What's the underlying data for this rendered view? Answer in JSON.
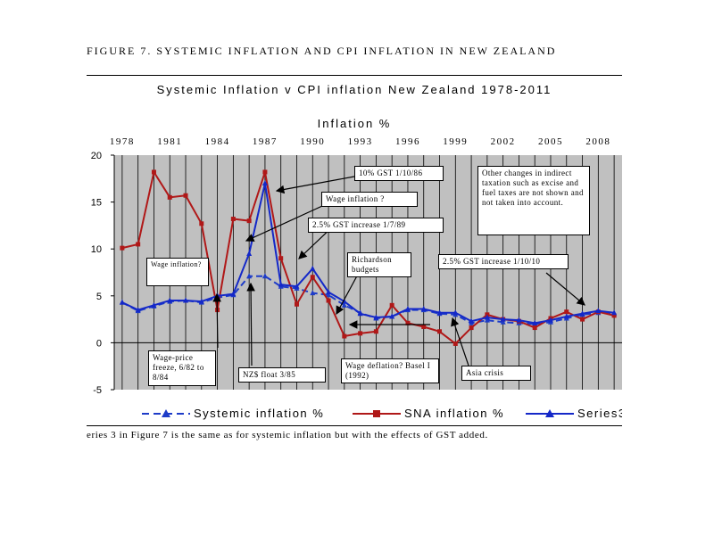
{
  "figure_title": "FIGURE 7. SYSTEMIC INFLATION AND CPI INFLATION IN NEW ZEALAND",
  "footnote": "eries 3 in Figure 7 is the same as for systemic inflation but with the effects of GST added.",
  "chart_data": {
    "type": "line",
    "title": "Systemic Inflation v CPI inflation New  Zealand 1978-2011",
    "xlabel": "Inflation %",
    "ylabel": "",
    "x_tick_position": "top",
    "x_tick_labels": [
      "1978",
      "1981",
      "1984",
      "1987",
      "1990",
      "1993",
      "1996",
      "1999",
      "2002",
      "2005",
      "2008"
    ],
    "y_tick_labels": [
      "20",
      "15",
      "10",
      "5",
      "0",
      "-5"
    ],
    "ylim": [
      -5,
      20
    ],
    "xlim": [
      1977.5,
      2009.5
    ],
    "grid": "vertical",
    "plot_background": "#c0c0c0",
    "legend_position": "bottom",
    "series": [
      {
        "name": "Systemic inflation %",
        "color": "#1e3cc8",
        "style": "dashed",
        "marker": "triangle",
        "x": [
          1978,
          1979,
          1980,
          1981,
          1982,
          1983,
          1984,
          1985,
          1986,
          1987,
          1988,
          1989,
          1990,
          1991,
          1992,
          1993,
          1994,
          1995,
          1996,
          1997,
          1998,
          1999,
          2000,
          2001,
          2002,
          2003,
          2004,
          2005,
          2006,
          2007,
          2008,
          2009
        ],
        "values": [
          4.3,
          3.4,
          3.9,
          4.4,
          4.5,
          4.3,
          4.8,
          5.1,
          7.1,
          7.1,
          6.0,
          5.8,
          5.3,
          5.1,
          4.0,
          3.2,
          2.6,
          2.8,
          3.5,
          3.5,
          3.1,
          3.0,
          2.1,
          2.4,
          2.2,
          2.1,
          2.0,
          2.2,
          2.6,
          3.0,
          3.2,
          3.1
        ]
      },
      {
        "name": "SNA inflation %",
        "color": "#b01818",
        "style": "solid",
        "marker": "square",
        "x": [
          1978,
          1979,
          1980,
          1981,
          1982,
          1983,
          1984,
          1985,
          1986,
          1987,
          1988,
          1989,
          1990,
          1991,
          1992,
          1993,
          1994,
          1995,
          1996,
          1997,
          1998,
          1999,
          2000,
          2001,
          2002,
          2003,
          2004,
          2005,
          2006,
          2007,
          2008,
          2009
        ],
        "values": [
          10.1,
          10.5,
          18.2,
          15.5,
          15.7,
          12.7,
          3.5,
          13.2,
          13.0,
          18.2,
          9.0,
          4.1,
          7.0,
          4.5,
          0.7,
          1.0,
          1.2,
          4.0,
          2.1,
          1.7,
          1.2,
          -0.1,
          1.6,
          3.0,
          2.5,
          2.3,
          1.6,
          2.6,
          3.3,
          2.5,
          3.3,
          2.9
        ]
      },
      {
        "name": "Series3",
        "color": "#1428c8",
        "style": "solid",
        "marker": "triangle",
        "x": [
          1978,
          1979,
          1980,
          1981,
          1982,
          1983,
          1984,
          1985,
          1986,
          1987,
          1988,
          1989,
          1990,
          1991,
          1992,
          1993,
          1994,
          1995,
          1996,
          1997,
          1998,
          1999,
          2000,
          2001,
          2002,
          2003,
          2004,
          2005,
          2006,
          2007,
          2008,
          2009
        ],
        "values": [
          4.3,
          3.5,
          4.0,
          4.5,
          4.5,
          4.4,
          5.0,
          5.2,
          9.5,
          17.0,
          6.2,
          6.0,
          7.9,
          5.4,
          4.4,
          3.1,
          2.7,
          2.8,
          3.6,
          3.6,
          3.2,
          3.2,
          2.3,
          2.7,
          2.5,
          2.4,
          2.1,
          2.4,
          2.8,
          3.1,
          3.4,
          3.2
        ]
      }
    ],
    "annotations": [
      {
        "text": "10% GST 1/10/86"
      },
      {
        "text": "Wage inflation  ?"
      },
      {
        "text": "2.5% GST increase 1/7/89"
      },
      {
        "text": "Other changes in indirect taxation such as excise and fuel taxes are not shown and not taken into account."
      },
      {
        "text": "Richardson budgets"
      },
      {
        "text": "2.5% GST increase 1/10/10"
      },
      {
        "text": "Wage inflation?"
      },
      {
        "text": "Wage-price freeze, 6/82 to 8/84"
      },
      {
        "text": "NZ$ float 3/85"
      },
      {
        "text": "Wage deflation? Basel I  (1992)"
      },
      {
        "text": "Asia crisis"
      }
    ]
  }
}
